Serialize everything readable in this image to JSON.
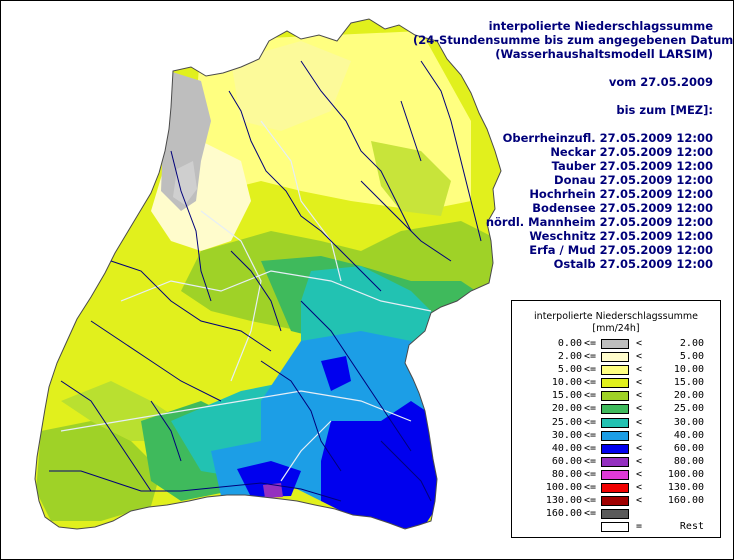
{
  "header": {
    "title_lines": [
      "interpolierte Niederschlagssumme",
      "(24-Stundensumme bis zum angegebenen Datum)",
      "(Wasserhaushaltsmodell LARSIM)"
    ],
    "date_line": "vom 27.05.2009",
    "until_line": "bis zum [MEZ]:",
    "basins": [
      "Oberrheinzufl. 27.05.2009 12:00",
      "Neckar 27.05.2009 12:00",
      "Tauber 27.05.2009 12:00",
      "Donau 27.05.2009 12:00",
      "Hochrhein 27.05.2009 12:00",
      "Bodensee 27.05.2009 12:00",
      "nördl. Mannheim 27.05.2009 12:00",
      "Weschnitz 27.05.2009 12:00",
      "Erfa / Mud 27.05.2009 12:00",
      "Ostalb 27.05.2009 12:00"
    ]
  },
  "legend": {
    "title": "interpolierte Niederschlagssumme",
    "unit": "[mm/24h]",
    "rows": [
      {
        "lo": "0.00",
        "op1": "<=",
        "color": "#bebebe",
        "op2": "<",
        "hi": "2.00"
      },
      {
        "lo": "2.00",
        "op1": "<=",
        "color": "#fffccc",
        "op2": "<",
        "hi": "5.00"
      },
      {
        "lo": "5.00",
        "op1": "<=",
        "color": "#ffff80",
        "op2": "<",
        "hi": "10.00"
      },
      {
        "lo": "10.00",
        "op1": "<=",
        "color": "#e1f01d",
        "op2": "<",
        "hi": "15.00"
      },
      {
        "lo": "15.00",
        "op1": "<=",
        "color": "#9fd227",
        "op2": "<",
        "hi": "20.00"
      },
      {
        "lo": "20.00",
        "op1": "<=",
        "color": "#3fba5c",
        "op2": "<",
        "hi": "25.00"
      },
      {
        "lo": "25.00",
        "op1": "<=",
        "color": "#22c2b2",
        "op2": "<",
        "hi": "30.00"
      },
      {
        "lo": "30.00",
        "op1": "<=",
        "color": "#1c9ee6",
        "op2": "<",
        "hi": "40.00"
      },
      {
        "lo": "40.00",
        "op1": "<=",
        "color": "#0000ee",
        "op2": "<",
        "hi": "60.00"
      },
      {
        "lo": "60.00",
        "op1": "<=",
        "color": "#9430c0",
        "op2": "<",
        "hi": "80.00"
      },
      {
        "lo": "80.00",
        "op1": "<=",
        "color": "#e03ad8",
        "op2": "<",
        "hi": "100.00"
      },
      {
        "lo": "100.00",
        "op1": "<=",
        "color": "#f00000",
        "op2": "<",
        "hi": "130.00"
      },
      {
        "lo": "130.00",
        "op1": "<=",
        "color": "#a00000",
        "op2": "<",
        "hi": "160.00"
      },
      {
        "lo": "160.00",
        "op1": "<=",
        "color": "#5a5a5a",
        "op2": "",
        "hi": ""
      },
      {
        "lo": "",
        "op1": "",
        "color": "#ffffff",
        "op2": "=",
        "hi": "Rest"
      }
    ]
  },
  "map": {
    "region_colors": {
      "outside": "#ffffff",
      "river": "#00007a",
      "border": "#e0e8f0"
    }
  }
}
